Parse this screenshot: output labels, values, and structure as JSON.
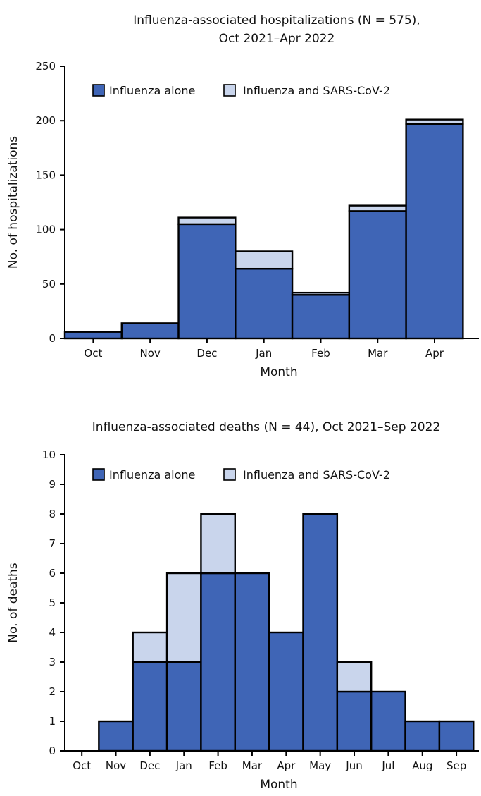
{
  "chart_data": [
    {
      "type": "bar",
      "stacked": true,
      "title_lines": [
        "Influenza-associated hospitalizations (N = 575),",
        "Oct 2021–Apr 2022"
      ],
      "xlabel": "Month",
      "ylabel": "No. of hospitalizations",
      "ylim": [
        0,
        250
      ],
      "yticks": [
        0,
        50,
        100,
        150,
        200,
        250
      ],
      "categories": [
        "Oct",
        "Nov",
        "Dec",
        "Jan",
        "Feb",
        "Mar",
        "Apr"
      ],
      "series": [
        {
          "name": "Influenza alone",
          "color": "#3f65b6",
          "values": [
            6,
            14,
            105,
            64,
            40,
            117,
            197
          ]
        },
        {
          "name": "Influenza and SARS-CoV-2",
          "color": "#c9d5ec",
          "values": [
            0,
            0,
            6,
            16,
            2,
            5,
            4
          ]
        }
      ],
      "legend_position": "top-left",
      "grid": false
    },
    {
      "type": "bar",
      "stacked": true,
      "title_lines": [
        "Influenza-associated deaths (N = 44), Oct 2021–Sep 2022"
      ],
      "xlabel": "Month",
      "ylabel": "No. of deaths",
      "ylim": [
        0,
        10
      ],
      "yticks": [
        0,
        1,
        2,
        3,
        4,
        5,
        6,
        7,
        8,
        9,
        10
      ],
      "categories": [
        "Oct",
        "Nov",
        "Dec",
        "Jan",
        "Feb",
        "Mar",
        "Apr",
        "May",
        "Jun",
        "Jul",
        "Aug",
        "Sep"
      ],
      "series": [
        {
          "name": "Influenza alone",
          "color": "#3f65b6",
          "values": [
            0,
            1,
            3,
            3,
            6,
            6,
            4,
            8,
            2,
            2,
            1,
            1
          ]
        },
        {
          "name": "Influenza and SARS-CoV-2",
          "color": "#c9d5ec",
          "values": [
            0,
            0,
            1,
            3,
            2,
            0,
            0,
            0,
            1,
            0,
            0,
            0
          ]
        }
      ],
      "legend_position": "top-left",
      "grid": false
    }
  ]
}
